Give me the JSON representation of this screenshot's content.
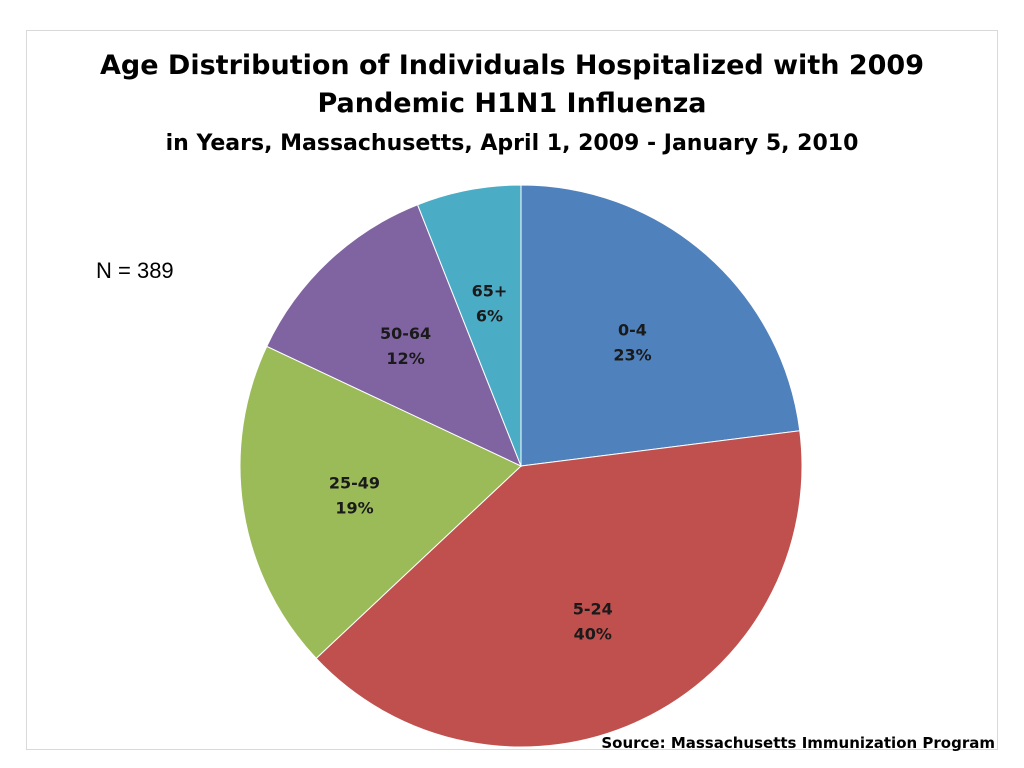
{
  "chart_data": {
    "type": "pie",
    "title": "Age Distribution of  Individuals Hospitalized with 2009",
    "title_line2": "Pandemic H1N1 Influenza",
    "subtitle": "in Years, Massachusetts, April 1, 2009 - January 5, 2010",
    "n_label": "N = 389",
    "source": "Source: Massachusetts Immunization Program",
    "categories": [
      "0-4",
      "5-24",
      "25-49",
      "50-64",
      "65+"
    ],
    "values": [
      23,
      40,
      19,
      12,
      6
    ],
    "value_labels": [
      "23%",
      "40%",
      "19%",
      "12%",
      "6%"
    ],
    "colors": [
      "#4f81bd",
      "#c0504d",
      "#9bbb59",
      "#8064a2",
      "#4bacc6"
    ],
    "start_angle_deg": 0,
    "direction": "clockwise",
    "legend": "none"
  }
}
